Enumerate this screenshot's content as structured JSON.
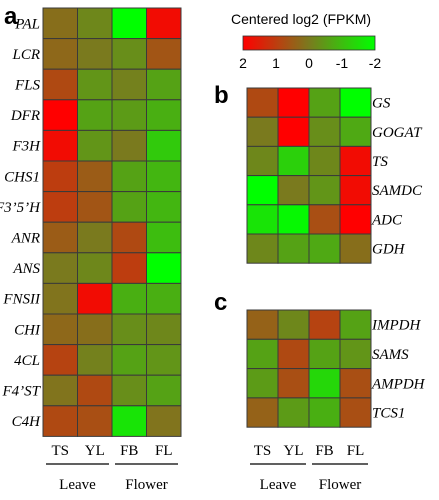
{
  "chart_data": [
    {
      "type": "heatmap",
      "panel_label": "a",
      "columns": [
        "TS",
        "YL",
        "FB",
        "FL"
      ],
      "rows": [
        "PAL",
        "LCR",
        "FLS",
        "DFR",
        "F3H",
        "CHS1",
        "F3’5’H",
        "ANR",
        "ANS",
        "FNSII",
        "CHI",
        "4CL",
        "F4’ST",
        "C4H"
      ],
      "values": [
        [
          0.2,
          -0.2,
          -2.0,
          1.8
        ],
        [
          0.3,
          0.0,
          -0.3,
          0.6
        ],
        [
          0.8,
          -0.4,
          -0.1,
          -0.6
        ],
        [
          2.0,
          -0.6,
          -0.5,
          -0.8
        ],
        [
          1.8,
          -0.4,
          0.0,
          -1.2
        ],
        [
          1.0,
          0.5,
          -0.6,
          -0.9
        ],
        [
          1.0,
          0.6,
          -0.6,
          -0.9
        ],
        [
          0.5,
          0.0,
          0.8,
          -1.0
        ],
        [
          0.0,
          -0.2,
          1.0,
          -2.0
        ],
        [
          0.1,
          1.8,
          -0.8,
          -0.8
        ],
        [
          0.3,
          0.2,
          -0.3,
          -0.2
        ],
        [
          0.9,
          -0.1,
          -0.6,
          -0.4
        ],
        [
          0.1,
          0.8,
          -0.3,
          -0.6
        ],
        [
          0.8,
          0.7,
          -1.6,
          0.1
        ]
      ]
    },
    {
      "type": "heatmap",
      "panel_label": "b",
      "columns": [
        "TS",
        "YL",
        "FB",
        "FL"
      ],
      "rows": [
        "GS",
        "GOGAT",
        "TS",
        "SAMDC",
        "ADC",
        "GDH"
      ],
      "values": [
        [
          0.8,
          2.0,
          -0.6,
          -2.0
        ],
        [
          0.0,
          2.0,
          -0.3,
          -0.7
        ],
        [
          -0.2,
          -1.3,
          -0.2,
          1.8
        ],
        [
          -2.0,
          0.0,
          -0.4,
          1.8
        ],
        [
          -1.6,
          -1.9,
          0.7,
          2.0
        ],
        [
          -0.2,
          -0.6,
          -0.7,
          0.2
        ]
      ]
    },
    {
      "type": "heatmap",
      "panel_label": "c",
      "columns": [
        "TS",
        "YL",
        "FB",
        "FL"
      ],
      "rows": [
        "IMPDH",
        "SAMS",
        "AMPDH",
        "TCS1"
      ],
      "values": [
        [
          0.4,
          -0.2,
          0.9,
          -0.6
        ],
        [
          -0.6,
          0.8,
          -0.6,
          -0.4
        ],
        [
          -0.5,
          0.7,
          -1.4,
          0.7
        ],
        [
          0.4,
          -0.5,
          -0.8,
          0.7
        ]
      ]
    }
  ],
  "colorbar": {
    "title": "Centered log2 (FPKM)",
    "min": -2,
    "max": 2,
    "tick_labels": [
      "2",
      "1",
      "0",
      "-1",
      "-2"
    ],
    "high_color": "#ff0000",
    "mid_color": "#7a7a1e",
    "low_color": "#00ff00"
  },
  "groups": [
    {
      "label": "Leave",
      "columns": [
        "TS",
        "YL"
      ]
    },
    {
      "label": "Flower",
      "columns": [
        "FB",
        "FL"
      ]
    }
  ]
}
